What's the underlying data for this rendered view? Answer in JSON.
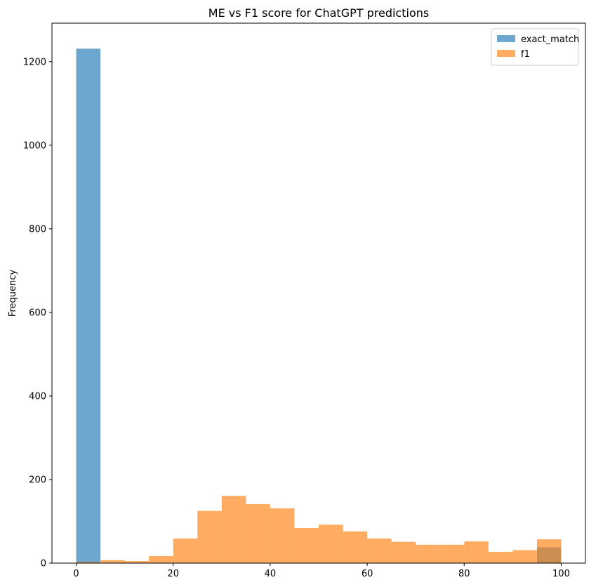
{
  "chart_data": {
    "type": "histogram",
    "title": "ME vs F1 score for ChatGPT predictions",
    "xlabel": "",
    "ylabel": "Frequency",
    "xlim": [
      -5,
      105
    ],
    "ylim": [
      0,
      1292
    ],
    "xticks": [
      0,
      20,
      40,
      60,
      80,
      100
    ],
    "yticks": [
      0,
      200,
      400,
      600,
      800,
      1000,
      1200
    ],
    "grid": false,
    "legend_position": "upper right",
    "bin_edges": [
      0,
      5,
      10,
      15,
      20,
      25,
      30,
      35,
      40,
      45,
      50,
      55,
      60,
      65,
      70,
      75,
      80,
      85,
      90,
      95,
      100
    ],
    "alpha": 0.65,
    "series": [
      {
        "name": "exact_match",
        "color": "#1f77b4",
        "values": [
          1231,
          0,
          0,
          0,
          0,
          0,
          0,
          0,
          0,
          0,
          0,
          0,
          0,
          0,
          0,
          0,
          0,
          0,
          0,
          38
        ]
      },
      {
        "name": "f1",
        "color": "#ff7f0e",
        "values": [
          3,
          7,
          5,
          17,
          59,
          125,
          161,
          141,
          131,
          84,
          92,
          76,
          59,
          51,
          44,
          44,
          52,
          27,
          31,
          57
        ]
      }
    ]
  }
}
